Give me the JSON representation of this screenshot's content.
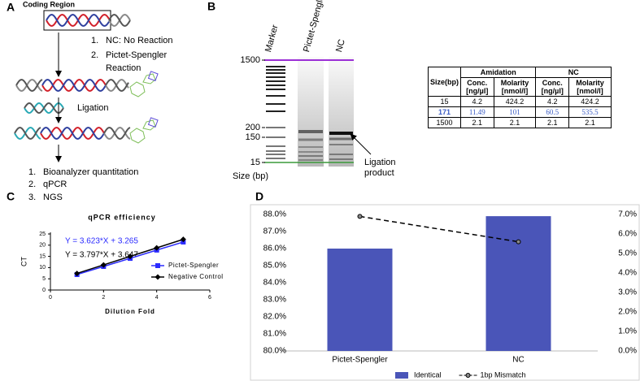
{
  "panel_a": {
    "label": "A",
    "coding_region": "Coding Region",
    "steps": [
      {
        "num": "1.",
        "text": "NC: No Reaction"
      },
      {
        "num": "2.",
        "text": "Pictet-Spengler",
        "text2": "Reaction"
      }
    ],
    "ligation": "Ligation",
    "outputs": [
      {
        "num": "1.",
        "text": "Bioanalyzer quantitation"
      },
      {
        "num": "2.",
        "text": "qPCR"
      },
      {
        "num": "3.",
        "text": "NGS"
      }
    ]
  },
  "panel_b": {
    "label": "B",
    "lanes": [
      "Marker",
      "Pictet-Spengler",
      "NC"
    ],
    "sizes": [
      "1500",
      "200",
      "150",
      "15"
    ],
    "size_label": "Size (bp)",
    "annotation": [
      "Ligation",
      "product"
    ],
    "table": {
      "header_top": [
        "Size(bp)",
        "Amidation",
        "NC"
      ],
      "header_sub": [
        "Conc. [ng/µl]",
        "Molarity [nmol/l]",
        "Conc. [ng/µl]",
        "Molarity [nmol/l]"
      ],
      "rows": [
        [
          15,
          4.2,
          424.2,
          4.2,
          424.2
        ],
        [
          171,
          11.49,
          101,
          60.5,
          535.5
        ],
        [
          1500,
          2.1,
          2.1,
          2.1,
          2.1
        ]
      ]
    }
  },
  "panel_c": {
    "label": "C"
  },
  "panel_d": {
    "label": "D"
  },
  "chart_data": [
    {
      "type": "line",
      "title": "qPCR efficiency",
      "x_label": "Dilution Fold",
      "y_label": "CT",
      "x": [
        1,
        2,
        3,
        4,
        5
      ],
      "xlim": [
        0,
        6
      ],
      "xticks": [
        0,
        2,
        4,
        6
      ],
      "ylim": [
        0,
        25
      ],
      "yticks": [
        0,
        5,
        10,
        15,
        20,
        25
      ],
      "series": [
        {
          "name": "Pictet-Spengler",
          "color": "#2b2bff",
          "marker": "square",
          "values": [
            6.9,
            10.5,
            14.1,
            17.8,
            21.4
          ]
        },
        {
          "name": "Negative Control",
          "color": "#000000",
          "marker": "diamond",
          "values": [
            7.4,
            11.2,
            15.0,
            18.8,
            22.6
          ]
        }
      ],
      "annotations": [
        "Y = 3.623*X + 3.265",
        "Y = 3.797*X + 3.647"
      ]
    },
    {
      "type": "bar-line",
      "categories": [
        "Pictet-Spengler",
        "NC"
      ],
      "ylim": [
        80,
        88
      ],
      "yticks": [
        {
          "value": 80,
          "label": "80.0%"
        },
        {
          "value": 81,
          "label": "81.0%"
        },
        {
          "value": 82,
          "label": "82.0%"
        },
        {
          "value": 83,
          "label": "83.0%"
        },
        {
          "value": 84,
          "label": "84.0%"
        },
        {
          "value": 85,
          "label": "85.0%"
        },
        {
          "value": 86,
          "label": "86.0%"
        },
        {
          "value": 87,
          "label": "87.0%"
        },
        {
          "value": 88,
          "label": "88.0%"
        }
      ],
      "y2lim": [
        0,
        7
      ],
      "y2ticks": [
        {
          "value": 0,
          "label": "0.0%"
        },
        {
          "value": 1,
          "label": "1.0%"
        },
        {
          "value": 2,
          "label": "2.0%"
        },
        {
          "value": 3,
          "label": "3.0%"
        },
        {
          "value": 4,
          "label": "4.0%"
        },
        {
          "value": 5,
          "label": "5.0%"
        },
        {
          "value": 6,
          "label": "6.0%"
        },
        {
          "value": 7,
          "label": "7.0%"
        }
      ],
      "series": [
        {
          "name": "Identical",
          "color": "#4a55b8",
          "values": [
            86.0,
            87.9
          ]
        },
        {
          "name": "1bp Mismatch",
          "color": "#000000",
          "axis": "y2",
          "values": [
            6.9,
            5.6
          ]
        }
      ],
      "legend": "bottom"
    }
  ]
}
